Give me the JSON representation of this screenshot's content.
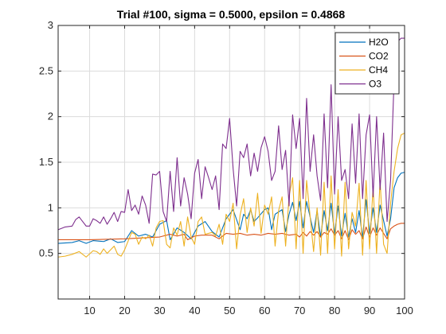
{
  "chart_data": {
    "type": "line",
    "title": "Trial #100, sigma = 0.5000, epsilon = 0.4868",
    "xlabel": "",
    "ylabel": "",
    "xlim": [
      1,
      100
    ],
    "ylim": [
      0,
      3
    ],
    "xticks": [
      10,
      20,
      30,
      40,
      50,
      60,
      70,
      80,
      90,
      100
    ],
    "yticks": [
      0.5,
      1,
      1.5,
      2,
      2.5,
      3
    ],
    "xtick_labels": [
      "10",
      "20",
      "30",
      "40",
      "50",
      "60",
      "70",
      "80",
      "90",
      "100"
    ],
    "ytick_labels": [
      "0.5",
      "1",
      "1.5",
      "2",
      "2.5",
      "3"
    ],
    "grid": true,
    "legend_position": "top-right",
    "series": [
      {
        "name": "H2O",
        "color": "#0072BD",
        "points": [
          [
            1,
            0.61
          ],
          [
            5,
            0.62
          ],
          [
            7,
            0.64
          ],
          [
            9,
            0.61
          ],
          [
            11,
            0.64
          ],
          [
            14,
            0.63
          ],
          [
            16,
            0.66
          ],
          [
            18,
            0.62
          ],
          [
            20,
            0.63
          ],
          [
            22,
            0.75
          ],
          [
            24,
            0.69
          ],
          [
            26,
            0.71
          ],
          [
            28,
            0.68
          ],
          [
            30,
            0.82
          ],
          [
            32,
            0.86
          ],
          [
            33,
            0.65
          ],
          [
            35,
            0.78
          ],
          [
            37,
            0.73
          ],
          [
            39,
            0.66
          ],
          [
            41,
            0.8
          ],
          [
            43,
            0.85
          ],
          [
            45,
            0.74
          ],
          [
            47,
            0.68
          ],
          [
            49,
            0.88
          ],
          [
            51,
            0.98
          ],
          [
            53,
            0.76
          ],
          [
            54,
            0.93
          ],
          [
            55,
            0.88
          ],
          [
            56,
            0.98
          ],
          [
            57,
            0.85
          ],
          [
            58,
            0.89
          ],
          [
            60,
            0.98
          ],
          [
            61,
            1.0
          ],
          [
            62,
            0.76
          ],
          [
            63,
            0.93
          ],
          [
            65,
            0.98
          ],
          [
            66,
            0.74
          ],
          [
            67,
            0.93
          ],
          [
            68,
            1.06
          ],
          [
            69,
            0.86
          ],
          [
            70,
            1.07
          ],
          [
            71,
            0.78
          ],
          [
            72,
            1.07
          ],
          [
            74,
            0.73
          ],
          [
            75,
            0.97
          ],
          [
            76,
            0.68
          ],
          [
            77,
            0.97
          ],
          [
            78,
            0.75
          ],
          [
            79,
            1.05
          ],
          [
            80,
            0.71
          ],
          [
            81,
            1.02
          ],
          [
            82,
            0.69
          ],
          [
            83,
            0.94
          ],
          [
            84,
            0.68
          ],
          [
            85,
            0.88
          ],
          [
            86,
            0.73
          ],
          [
            87,
            0.97
          ],
          [
            88,
            0.67
          ],
          [
            89,
            1.09
          ],
          [
            90,
            0.72
          ],
          [
            91,
            1.0
          ],
          [
            92,
            0.73
          ],
          [
            93,
            1.03
          ],
          [
            95,
            0.69
          ],
          [
            96,
            0.88
          ],
          [
            97,
            1.22
          ],
          [
            98,
            1.33
          ],
          [
            99,
            1.38
          ],
          [
            100,
            1.39
          ]
        ]
      },
      {
        "name": "CO2",
        "color": "#D95319",
        "points": [
          [
            1,
            0.65
          ],
          [
            10,
            0.65
          ],
          [
            20,
            0.66
          ],
          [
            30,
            0.68
          ],
          [
            33,
            0.71
          ],
          [
            35,
            0.69
          ],
          [
            37,
            0.71
          ],
          [
            38,
            0.65
          ],
          [
            40,
            0.69
          ],
          [
            42,
            0.7
          ],
          [
            45,
            0.7
          ],
          [
            47,
            0.66
          ],
          [
            49,
            0.72
          ],
          [
            51,
            0.71
          ],
          [
            53,
            0.72
          ],
          [
            55,
            0.7
          ],
          [
            57,
            0.71
          ],
          [
            59,
            0.7
          ],
          [
            61,
            0.72
          ],
          [
            63,
            0.71
          ],
          [
            65,
            0.72
          ],
          [
            67,
            0.7
          ],
          [
            69,
            0.71
          ],
          [
            70,
            0.68
          ],
          [
            71,
            0.73
          ],
          [
            72,
            0.69
          ],
          [
            73,
            0.74
          ],
          [
            74,
            0.7
          ],
          [
            75,
            0.74
          ],
          [
            76,
            0.68
          ],
          [
            77,
            0.73
          ],
          [
            78,
            0.71
          ],
          [
            79,
            0.77
          ],
          [
            80,
            0.7
          ],
          [
            81,
            0.75
          ],
          [
            82,
            0.66
          ],
          [
            83,
            0.75
          ],
          [
            84,
            0.65
          ],
          [
            85,
            0.76
          ],
          [
            86,
            0.71
          ],
          [
            87,
            0.75
          ],
          [
            88,
            0.66
          ],
          [
            89,
            0.79
          ],
          [
            90,
            0.68
          ],
          [
            91,
            0.78
          ],
          [
            92,
            0.7
          ],
          [
            93,
            0.78
          ],
          [
            95,
            0.66
          ],
          [
            96,
            0.77
          ],
          [
            97,
            0.8
          ],
          [
            98,
            0.82
          ],
          [
            99,
            0.83
          ],
          [
            100,
            0.83
          ]
        ]
      },
      {
        "name": "CH4",
        "color": "#EDB120",
        "points": [
          [
            1,
            0.46
          ],
          [
            3,
            0.47
          ],
          [
            5,
            0.49
          ],
          [
            7,
            0.52
          ],
          [
            9,
            0.46
          ],
          [
            11,
            0.53
          ],
          [
            12,
            0.52
          ],
          [
            13,
            0.49
          ],
          [
            14,
            0.55
          ],
          [
            15,
            0.5
          ],
          [
            17,
            0.58
          ],
          [
            18,
            0.49
          ],
          [
            19,
            0.47
          ],
          [
            20,
            0.54
          ],
          [
            22,
            0.73
          ],
          [
            23,
            0.71
          ],
          [
            24,
            0.6
          ],
          [
            25,
            0.68
          ],
          [
            26,
            0.66
          ],
          [
            27,
            0.7
          ],
          [
            28,
            0.58
          ],
          [
            29,
            0.78
          ],
          [
            30,
            0.85
          ],
          [
            31,
            0.86
          ],
          [
            32,
            0.6
          ],
          [
            33,
            0.56
          ],
          [
            34,
            0.78
          ],
          [
            35,
            0.7
          ],
          [
            36,
            0.85
          ],
          [
            37,
            0.58
          ],
          [
            38,
            0.9
          ],
          [
            39,
            0.68
          ],
          [
            40,
            0.6
          ],
          [
            41,
            0.85
          ],
          [
            42,
            0.9
          ],
          [
            43,
            0.71
          ],
          [
            45,
            0.73
          ],
          [
            46,
            0.69
          ],
          [
            47,
            0.82
          ],
          [
            48,
            0.6
          ],
          [
            49,
            0.93
          ],
          [
            50,
            0.85
          ],
          [
            51,
            1.05
          ],
          [
            52,
            0.55
          ],
          [
            53,
            0.92
          ],
          [
            54,
            1.1
          ],
          [
            55,
            0.73
          ],
          [
            56,
            1.0
          ],
          [
            57,
            0.8
          ],
          [
            58,
            1.16
          ],
          [
            59,
            0.72
          ],
          [
            60,
            1.03
          ],
          [
            61,
            0.93
          ],
          [
            62,
            1.12
          ],
          [
            63,
            0.58
          ],
          [
            64,
            0.97
          ],
          [
            65,
            1.12
          ],
          [
            66,
            0.58
          ],
          [
            67,
            1.13
          ],
          [
            68,
            1.33
          ],
          [
            69,
            0.55
          ],
          [
            70,
            1.3
          ],
          [
            71,
            0.5
          ],
          [
            72,
            1.3
          ],
          [
            74,
            0.52
          ],
          [
            75,
            1.0
          ],
          [
            76,
            0.48
          ],
          [
            77,
            1.28
          ],
          [
            78,
            0.5
          ],
          [
            79,
            1.35
          ],
          [
            80,
            0.55
          ],
          [
            81,
            1.2
          ],
          [
            82,
            0.47
          ],
          [
            83,
            1.28
          ],
          [
            84,
            0.55
          ],
          [
            85,
            0.95
          ],
          [
            86,
            0.8
          ],
          [
            87,
            1.27
          ],
          [
            88,
            0.48
          ],
          [
            89,
            1.3
          ],
          [
            90,
            0.55
          ],
          [
            91,
            1.23
          ],
          [
            92,
            0.5
          ],
          [
            93,
            1.3
          ],
          [
            94,
            0.6
          ],
          [
            95,
            0.5
          ],
          [
            96,
            1.05
          ],
          [
            97,
            1.4
          ],
          [
            98,
            1.65
          ],
          [
            99,
            1.8
          ],
          [
            100,
            1.82
          ]
        ]
      },
      {
        "name": "O3",
        "color": "#7E2F8E",
        "points": [
          [
            1,
            0.76
          ],
          [
            3,
            0.79
          ],
          [
            5,
            0.8
          ],
          [
            6,
            0.87
          ],
          [
            7,
            0.9
          ],
          [
            8,
            0.85
          ],
          [
            9,
            0.8
          ],
          [
            10,
            0.8
          ],
          [
            11,
            0.88
          ],
          [
            12,
            0.86
          ],
          [
            13,
            0.83
          ],
          [
            14,
            0.9
          ],
          [
            15,
            0.82
          ],
          [
            16,
            0.88
          ],
          [
            17,
            0.95
          ],
          [
            18,
            0.85
          ],
          [
            19,
            0.96
          ],
          [
            20,
            0.95
          ],
          [
            21,
            1.2
          ],
          [
            22,
            0.97
          ],
          [
            23,
            1.03
          ],
          [
            24,
            0.93
          ],
          [
            25,
            1.13
          ],
          [
            26,
            1.03
          ],
          [
            27,
            0.83
          ],
          [
            28,
            1.37
          ],
          [
            29,
            1.36
          ],
          [
            30,
            1.4
          ],
          [
            31,
            0.96
          ],
          [
            32,
            0.85
          ],
          [
            33,
            1.4
          ],
          [
            34,
            0.96
          ],
          [
            35,
            1.55
          ],
          [
            36,
            1.02
          ],
          [
            37,
            1.33
          ],
          [
            38,
            1.15
          ],
          [
            39,
            0.88
          ],
          [
            40,
            1.38
          ],
          [
            41,
            1.53
          ],
          [
            42,
            1.1
          ],
          [
            43,
            1.45
          ],
          [
            44,
            1.33
          ],
          [
            45,
            1.2
          ],
          [
            46,
            1.35
          ],
          [
            47,
            0.98
          ],
          [
            48,
            1.7
          ],
          [
            49,
            1.65
          ],
          [
            50,
            1.98
          ],
          [
            51,
            1.43
          ],
          [
            52,
            1.02
          ],
          [
            53,
            1.62
          ],
          [
            54,
            1.55
          ],
          [
            55,
            1.7
          ],
          [
            56,
            1.35
          ],
          [
            57,
            1.6
          ],
          [
            58,
            1.4
          ],
          [
            59,
            1.66
          ],
          [
            60,
            1.78
          ],
          [
            61,
            1.62
          ],
          [
            62,
            1.3
          ],
          [
            63,
            1.4
          ],
          [
            64,
            1.9
          ],
          [
            65,
            1.42
          ],
          [
            66,
            1.63
          ],
          [
            67,
            1.02
          ],
          [
            68,
            2.02
          ],
          [
            69,
            1.65
          ],
          [
            70,
            1.98
          ],
          [
            71,
            1.1
          ],
          [
            72,
            2.2
          ],
          [
            73,
            1.4
          ],
          [
            74,
            1.8
          ],
          [
            75,
            1.35
          ],
          [
            76,
            1.08
          ],
          [
            77,
            2.03
          ],
          [
            78,
            1.22
          ],
          [
            79,
            2.35
          ],
          [
            80,
            1.15
          ],
          [
            81,
            2.0
          ],
          [
            82,
            1.3
          ],
          [
            83,
            1.42
          ],
          [
            84,
            1.1
          ],
          [
            85,
            1.92
          ],
          [
            86,
            1.27
          ],
          [
            87,
            2.03
          ],
          [
            88,
            1.1
          ],
          [
            89,
            1.8
          ],
          [
            90,
            2.02
          ],
          [
            91,
            1.12
          ],
          [
            92,
            2.0
          ],
          [
            93,
            1.2
          ],
          [
            94,
            1.82
          ],
          [
            95,
            0.85
          ],
          [
            96,
            1.3
          ],
          [
            97,
            2.4
          ],
          [
            98,
            2.82
          ],
          [
            99,
            2.86
          ],
          [
            100,
            2.86
          ]
        ]
      }
    ]
  }
}
